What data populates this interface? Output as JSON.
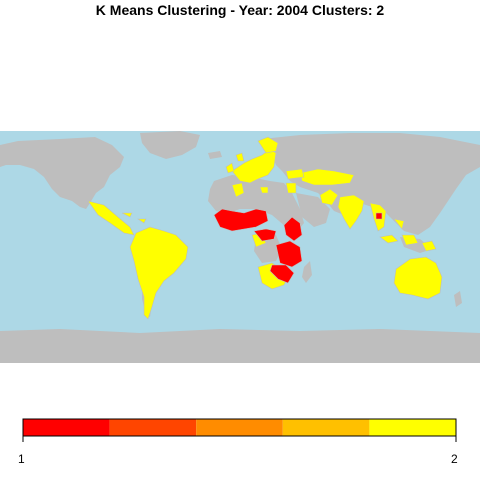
{
  "map": {
    "title": "K Means Clustering - Year: 2004 Clusters: 2",
    "colors": {
      "ocean": "#add8e6",
      "land_no_data": "#bebebe",
      "cluster_1": "#ff0000",
      "cluster_2": "#ffff00",
      "border": "#ffffff"
    }
  },
  "legend": {
    "colors": [
      "#ff0000",
      "#ff4500",
      "#ff8c00",
      "#ffc000",
      "#ffff00"
    ],
    "min_label": "1",
    "max_label": "2"
  }
}
